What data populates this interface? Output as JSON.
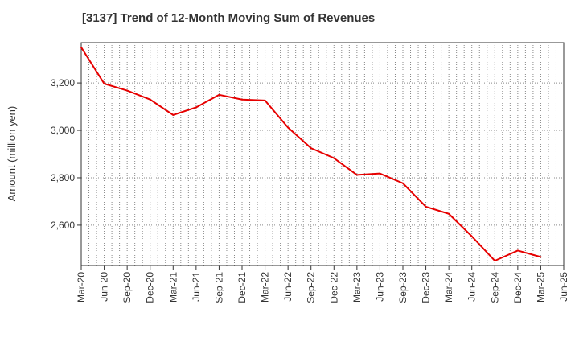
{
  "chart_data": {
    "type": "line",
    "title": "[3137]  Trend of 12-Month Moving Sum of Revenues",
    "ylabel": "Amount (million yen)",
    "xlabel": "",
    "ylim": [
      2430,
      3370
    ],
    "yticks": [
      2600,
      2800,
      3000,
      3200
    ],
    "ytick_labels": [
      "2,600",
      "2,800",
      "3,000",
      "3,200"
    ],
    "xtick_labels": [
      "Mar-20",
      "Jun-20",
      "Sep-20",
      "Dec-20",
      "Mar-21",
      "Jun-21",
      "Sep-21",
      "Dec-21",
      "Mar-22",
      "Jun-22",
      "Sep-22",
      "Dec-22",
      "Mar-23",
      "Jun-23",
      "Sep-23",
      "Dec-23",
      "Mar-24",
      "Jun-24",
      "Sep-24",
      "Dec-24",
      "Mar-25",
      "Jun-25"
    ],
    "grid": true,
    "series": [
      {
        "color": "#e60000",
        "x": [
          "Mar-20",
          "Jun-20",
          "Sep-20",
          "Dec-20",
          "Mar-21",
          "Jun-21",
          "Sep-21",
          "Dec-21",
          "Mar-22",
          "Jun-22",
          "Sep-22",
          "Dec-22",
          "Mar-23",
          "Jun-23",
          "Sep-23",
          "Dec-23",
          "Mar-24",
          "Jun-24",
          "Sep-24",
          "Dec-24",
          "Mar-25"
        ],
        "values": [
          3350,
          3197,
          3168,
          3130,
          3065,
          3097,
          3150,
          3130,
          3126,
          3012,
          2925,
          2883,
          2812,
          2818,
          2777,
          2678,
          2648,
          2553,
          2450,
          2493,
          2466
        ]
      }
    ]
  }
}
